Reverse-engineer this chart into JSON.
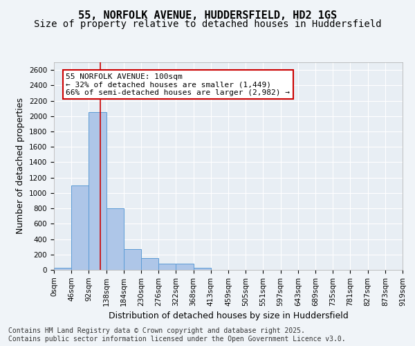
{
  "title_line1": "55, NORFOLK AVENUE, HUDDERSFIELD, HD2 1GS",
  "title_line2": "Size of property relative to detached houses in Huddersfield",
  "xlabel": "Distribution of detached houses by size in Huddersfield",
  "ylabel": "Number of detached properties",
  "bar_values": [
    30,
    1100,
    2050,
    800,
    270,
    155,
    80,
    80,
    30,
    0,
    0,
    0,
    0,
    0,
    0,
    0,
    0,
    0,
    0,
    0
  ],
  "bin_labels": [
    "0sqm",
    "46sqm",
    "92sqm",
    "138sqm",
    "184sqm",
    "230sqm",
    "276sqm",
    "322sqm",
    "368sqm",
    "413sqm",
    "459sqm",
    "505sqm",
    "551sqm",
    "597sqm",
    "643sqm",
    "689sqm",
    "735sqm",
    "781sqm",
    "827sqm",
    "873sqm",
    "919sqm"
  ],
  "bar_color": "#aec6e8",
  "bar_edge_color": "#5b9bd5",
  "bg_color": "#e8eef4",
  "fig_bg_color": "#f0f4f8",
  "grid_color": "#ffffff",
  "vline_x": 2.17,
  "vline_color": "#cc0000",
  "annotation_text": "55 NORFOLK AVENUE: 100sqm\n← 32% of detached houses are smaller (1,449)\n66% of semi-detached houses are larger (2,982) →",
  "annotation_box_edgecolor": "#cc0000",
  "ylim": [
    0,
    2700
  ],
  "yticks": [
    0,
    200,
    400,
    600,
    800,
    1000,
    1200,
    1400,
    1600,
    1800,
    2000,
    2200,
    2400,
    2600
  ],
  "footnote": "Contains HM Land Registry data © Crown copyright and database right 2025.\nContains public sector information licensed under the Open Government Licence v3.0.",
  "title_fontsize": 11,
  "subtitle_fontsize": 10,
  "axis_label_fontsize": 9,
  "tick_fontsize": 7.5,
  "annotation_fontsize": 8,
  "footnote_fontsize": 7
}
